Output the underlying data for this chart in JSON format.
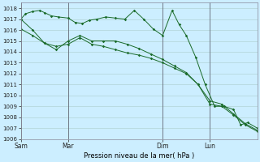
{
  "title": "Pression niveau de la mer( hPa )",
  "background_color": "#cceeff",
  "grid_color": "#aacccc",
  "line_color": "#1a6b2a",
  "ylim": [
    1006,
    1018.5
  ],
  "yticks": [
    1006,
    1007,
    1008,
    1009,
    1010,
    1011,
    1012,
    1013,
    1014,
    1015,
    1016,
    1017,
    1018
  ],
  "day_labels": [
    "Sam",
    "Mar",
    "Dim",
    "Lun"
  ],
  "day_positions": [
    0.0,
    0.2,
    0.6,
    0.8
  ],
  "xlim": [
    0.0,
    1.0
  ],
  "series1_x": [
    0.0,
    0.02,
    0.05,
    0.08,
    0.1,
    0.13,
    0.16,
    0.2,
    0.23,
    0.26,
    0.29,
    0.32,
    0.36,
    0.4,
    0.44,
    0.48,
    0.52,
    0.56,
    0.6,
    0.64,
    0.67,
    0.7,
    0.74,
    0.78,
    0.82,
    0.86,
    0.9,
    0.93,
    0.96,
    1.0
  ],
  "series1_y": [
    1017.0,
    1017.5,
    1017.7,
    1017.8,
    1017.6,
    1017.3,
    1017.2,
    1017.1,
    1016.7,
    1016.6,
    1016.9,
    1017.0,
    1017.2,
    1017.1,
    1017.0,
    1017.8,
    1017.0,
    1016.1,
    1015.5,
    1017.8,
    1016.5,
    1015.5,
    1013.5,
    1011.0,
    1009.0,
    1009.0,
    1008.7,
    1007.3,
    1007.5,
    1007.0
  ],
  "series2_x": [
    0.0,
    0.05,
    0.1,
    0.15,
    0.2,
    0.25,
    0.3,
    0.35,
    0.4,
    0.45,
    0.5,
    0.55,
    0.6,
    0.65,
    0.7,
    0.75,
    0.8,
    0.85,
    0.9,
    0.95,
    1.0
  ],
  "series2_y": [
    1016.1,
    1015.5,
    1014.8,
    1014.5,
    1014.7,
    1015.3,
    1014.7,
    1014.5,
    1014.2,
    1013.9,
    1013.7,
    1013.4,
    1013.0,
    1012.5,
    1012.0,
    1011.0,
    1009.2,
    1009.0,
    1008.2,
    1007.3,
    1006.7
  ],
  "series3_x": [
    0.0,
    0.05,
    0.1,
    0.15,
    0.2,
    0.25,
    0.3,
    0.35,
    0.4,
    0.45,
    0.5,
    0.55,
    0.6,
    0.65,
    0.7,
    0.75,
    0.8,
    0.85,
    0.9,
    0.95,
    1.0
  ],
  "series3_y": [
    1017.0,
    1016.0,
    1014.8,
    1014.2,
    1015.0,
    1015.5,
    1015.0,
    1015.0,
    1015.0,
    1014.7,
    1014.3,
    1013.8,
    1013.3,
    1012.7,
    1012.1,
    1011.0,
    1009.5,
    1009.2,
    1008.3,
    1007.4,
    1006.8
  ],
  "marker_size": 1.8,
  "linewidth": 0.7,
  "tick_fontsize": 5.0,
  "xlabel_fontsize": 6.0
}
